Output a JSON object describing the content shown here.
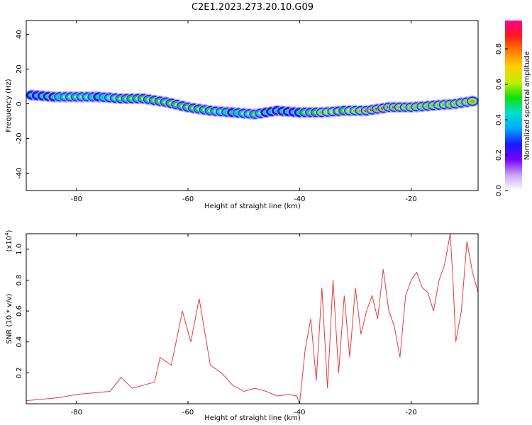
{
  "figure_title": "C2E1.2023.273.20.10.G09",
  "chart_data": [
    {
      "type": "heatmap",
      "xlabel": "Height of straight line (km)",
      "ylabel": "Frequency (Hz)",
      "xlim": [
        -89,
        -8
      ],
      "ylim": [
        -50,
        48
      ],
      "xticks": [
        -80,
        -60,
        -40,
        -20
      ],
      "yticks": [
        40,
        20,
        0,
        -20,
        -40
      ],
      "colorbar": {
        "label": "Normalized spectral amplitude",
        "range": [
          0,
          0.96
        ],
        "ticks": [
          "0.0",
          "0.2",
          "0.4",
          "0.6",
          "0.8"
        ],
        "colors": [
          "#ffffff",
          "#c9a6f5",
          "#7a00ff",
          "#1a1aff",
          "#00a6ff",
          "#00e0d0",
          "#10e010",
          "#c0f000",
          "#ffd000",
          "#ff8000",
          "#ff1a1a",
          "#ff0090"
        ]
      },
      "ridge": [
        {
          "x": -88,
          "freq": 5,
          "amp": 0.45
        },
        {
          "x": -84,
          "freq": 4,
          "amp": 0.55
        },
        {
          "x": -80,
          "freq": 4,
          "amp": 0.6
        },
        {
          "x": -76,
          "freq": 4,
          "amp": 0.55
        },
        {
          "x": -72,
          "freq": 3,
          "amp": 0.6
        },
        {
          "x": -68,
          "freq": 3,
          "amp": 0.65
        },
        {
          "x": -64,
          "freq": 1,
          "amp": 0.7
        },
        {
          "x": -60,
          "freq": -2,
          "amp": 0.7
        },
        {
          "x": -56,
          "freq": -4,
          "amp": 0.6
        },
        {
          "x": -52,
          "freq": -5,
          "amp": 0.55
        },
        {
          "x": -48,
          "freq": -6,
          "amp": 0.6
        },
        {
          "x": -44,
          "freq": -4,
          "amp": 0.5
        },
        {
          "x": -40,
          "freq": -5,
          "amp": 0.55
        },
        {
          "x": -36,
          "freq": -5,
          "amp": 0.75
        },
        {
          "x": -32,
          "freq": -4,
          "amp": 0.7
        },
        {
          "x": -28,
          "freq": -4,
          "amp": 0.85
        },
        {
          "x": -24,
          "freq": -2,
          "amp": 0.85
        },
        {
          "x": -20,
          "freq": -2,
          "amp": 0.8
        },
        {
          "x": -16,
          "freq": -1,
          "amp": 0.75
        },
        {
          "x": -12,
          "freq": 0,
          "amp": 0.8
        },
        {
          "x": -8,
          "freq": 2,
          "amp": 0.75
        }
      ]
    },
    {
      "type": "line",
      "xlabel": "Height of straight line (km)",
      "ylabel": "SNR (10 * v/v)",
      "y_multiplier": "(x10",
      "y_multiplier_exp": "4",
      "y_multiplier_close": ")",
      "xlim": [
        -89,
        -8
      ],
      "ylim": [
        0,
        1.1
      ],
      "xticks": [
        -80,
        -60,
        -40,
        -20
      ],
      "yticks": [
        0.2,
        0.4,
        0.6,
        0.8,
        1.0
      ],
      "color": "#e8393b",
      "x": [
        -89,
        -86,
        -83,
        -80,
        -77,
        -74,
        -72,
        -70,
        -68,
        -66,
        -65,
        -63,
        -61,
        -59.5,
        -58,
        -56,
        -54,
        -52,
        -50,
        -48,
        -46,
        -44,
        -42,
        -40.5,
        -40,
        -39,
        -38,
        -37,
        -36,
        -35,
        -34,
        -33,
        -32,
        -31,
        -30,
        -29,
        -28,
        -27,
        -26,
        -25,
        -24,
        -23,
        -22,
        -21,
        -20,
        -19,
        -18,
        -17,
        -16,
        -15,
        -14,
        -13,
        -12.5,
        -12,
        -11,
        -10,
        -9,
        -8
      ],
      "y": [
        0.02,
        0.03,
        0.04,
        0.06,
        0.07,
        0.08,
        0.17,
        0.1,
        0.12,
        0.14,
        0.3,
        0.25,
        0.6,
        0.4,
        0.68,
        0.25,
        0.2,
        0.12,
        0.08,
        0.1,
        0.08,
        0.05,
        0.06,
        0.05,
        0.0,
        0.35,
        0.55,
        0.15,
        0.75,
        0.1,
        0.8,
        0.2,
        0.7,
        0.3,
        0.75,
        0.45,
        0.6,
        0.7,
        0.55,
        0.87,
        0.6,
        0.5,
        0.3,
        0.7,
        0.8,
        0.85,
        0.75,
        0.72,
        0.6,
        0.8,
        0.9,
        1.1,
        0.8,
        0.4,
        0.6,
        1.05,
        0.85,
        0.72
      ]
    }
  ]
}
